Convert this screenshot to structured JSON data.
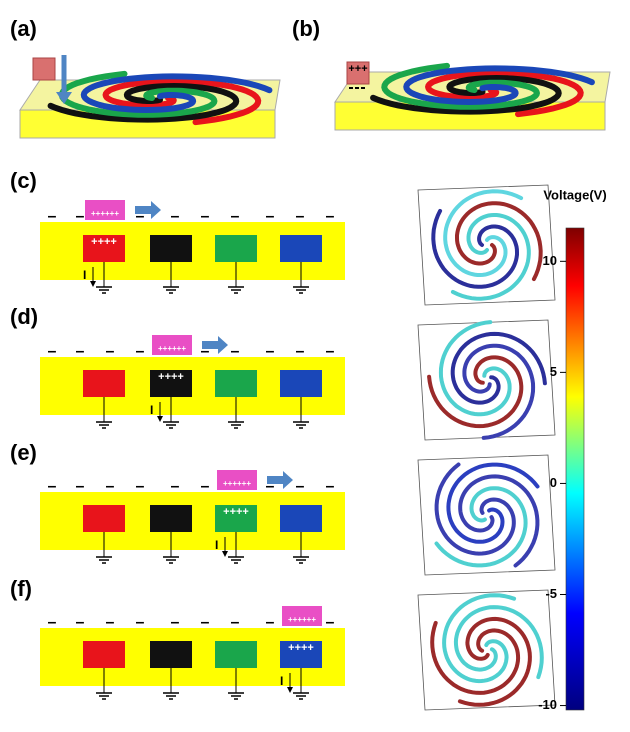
{
  "panel_labels": [
    "(a)",
    "(b)",
    "(c)",
    "(d)",
    "(e)",
    "(f)"
  ],
  "schematic": {
    "negative_charge": "–",
    "slider_charge": "++++++",
    "electrode_charge": "++++",
    "current": "I",
    "cube_charge": "+++"
  },
  "colorbar": {
    "title": "Voltage(V)",
    "range": [
      -10.2,
      11.5
    ],
    "ticks": [
      10,
      5,
      0,
      -5,
      -10
    ]
  }
}
